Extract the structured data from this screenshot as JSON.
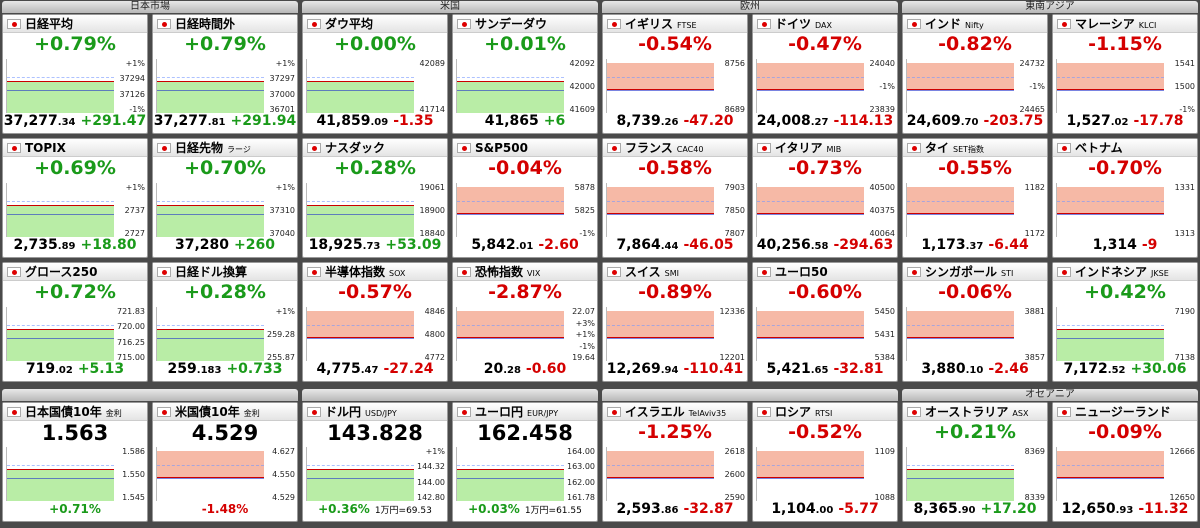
{
  "columns": [
    {
      "title": "日本市場",
      "tiles": [
        {
          "name": "日経平均",
          "change_pct": "+0.79%",
          "price": "37,277",
          "price_dec": ".34",
          "change": "+291.47",
          "labels": [
            "+1%",
            "37294",
            "37126",
            "-1%"
          ]
        },
        {
          "name": "日経時間外",
          "change_pct": "+0.79%",
          "price": "37,277",
          "price_dec": ".81",
          "change": "+291.94",
          "labels": [
            "+1%",
            "37297",
            "37000",
            "36701"
          ]
        },
        {
          "name": "TOPIX",
          "change_pct": "+0.69%",
          "price": "2,735",
          "price_dec": ".89",
          "change": "+18.80",
          "labels": [
            "+1%",
            "2737",
            "2727"
          ]
        },
        {
          "name": "日経先物",
          "code": "ラージ",
          "change_pct": "+0.70%",
          "price": "37,280",
          "change": "+260",
          "labels": [
            "+1%",
            "37310",
            "37040"
          ]
        },
        {
          "name": "グロース250",
          "change_pct": "+0.72%",
          "price": "719",
          "price_dec": ".02",
          "change": "+5.13",
          "labels": [
            "721.83",
            "720.00",
            "716.25",
            "715.00"
          ]
        },
        {
          "name": "日経ドル換算",
          "change_pct": "+0.28%",
          "price": "259",
          "price_dec": ".183",
          "change": "+0.733",
          "labels": [
            "+1%",
            "259.28",
            "255.87"
          ]
        },
        {
          "name": "日本国債10年",
          "code": "金利",
          "value": "1.563",
          "change": "+0.71%",
          "labels": [
            "1.586",
            "1.550",
            "1.545"
          ]
        },
        {
          "name": "米国債10年",
          "code": "金利",
          "value": "4.529",
          "change": "-1.48%",
          "labels": [
            "4.627",
            "4.550",
            "4.529"
          ]
        }
      ]
    },
    {
      "title": "米国",
      "tiles": [
        {
          "name": "ダウ平均",
          "change_pct": "+0.00%",
          "price": "41,859",
          "price_dec": ".09",
          "change": "-1.35",
          "labels": [
            "42089",
            "41714"
          ]
        },
        {
          "name": "サンデーダウ",
          "change_pct": "+0.01%",
          "price": "41,865",
          "change": "+6",
          "labels": [
            "42092",
            "42000",
            "41609"
          ]
        },
        {
          "name": "ナスダック",
          "change_pct": "+0.28%",
          "price": "18,925",
          "price_dec": ".73",
          "change": "+53.09",
          "labels": [
            "19061",
            "18900",
            "18840"
          ]
        },
        {
          "name": "S&P500",
          "change_pct": "-0.04%",
          "price": "5,842",
          "price_dec": ".01",
          "change": "-2.60",
          "labels": [
            "5878",
            "5825",
            "-1%"
          ]
        },
        {
          "name": "半導体指数",
          "code": "SOX",
          "change_pct": "-0.57%",
          "price": "4,775",
          "price_dec": ".47",
          "change": "-27.24",
          "labels": [
            "4846",
            "4800",
            "4772"
          ]
        },
        {
          "name": "恐怖指数",
          "code": "VIX",
          "change_pct": "-2.87%",
          "price": "20",
          "price_dec": ".28",
          "change": "-0.60",
          "labels": [
            "22.07",
            "+3%",
            "+1%",
            "-1%",
            "19.64"
          ]
        },
        {
          "name": "ドル円",
          "code": "USD/JPY",
          "value": "143.828",
          "change": "+0.36%",
          "note": "1万円=69.53",
          "labels": [
            "+1%",
            "144.32",
            "144.00",
            "142.80"
          ]
        },
        {
          "name": "ユーロ円",
          "code": "EUR/JPY",
          "value": "162.458",
          "change": "+0.03%",
          "note": "1万円=61.55",
          "labels": [
            "164.00",
            "163.00",
            "162.00",
            "161.78"
          ]
        }
      ]
    },
    {
      "title": "欧州",
      "tiles": [
        {
          "name": "イギリス",
          "code": "FTSE",
          "change_pct": "-0.54%",
          "price": "8,739",
          "price_dec": ".26",
          "change": "-47.20",
          "labels": [
            "8756",
            "8689"
          ]
        },
        {
          "name": "ドイツ",
          "code": "DAX",
          "change_pct": "-0.47%",
          "price": "24,008",
          "price_dec": ".27",
          "change": "-114.13",
          "labels": [
            "24040",
            "-1%",
            "23839"
          ]
        },
        {
          "name": "フランス",
          "code": "CAC40",
          "change_pct": "-0.58%",
          "price": "7,864",
          "price_dec": ".44",
          "change": "-46.05",
          "labels": [
            "7903",
            "7850",
            "7807"
          ]
        },
        {
          "name": "イタリア",
          "code": "MIB",
          "change_pct": "-0.73%",
          "price": "40,256",
          "price_dec": ".58",
          "change": "-294.63",
          "labels": [
            "40500",
            "40375",
            "40064"
          ]
        },
        {
          "name": "スイス",
          "code": "SMI",
          "change_pct": "-0.89%",
          "price": "12,269",
          "price_dec": ".94",
          "change": "-110.41",
          "labels": [
            "12336",
            "12201"
          ]
        },
        {
          "name": "ユーロ50",
          "change_pct": "-0.60%",
          "price": "5,421",
          "price_dec": ".65",
          "change": "-32.81",
          "labels": [
            "5450",
            "5431",
            "5384"
          ]
        },
        {
          "name": "イスラエル",
          "code": "TelAviv35",
          "change_pct": "-1.25%",
          "price": "2,593",
          "price_dec": ".86",
          "change": "-32.87",
          "labels": [
            "2618",
            "2600",
            "2590"
          ]
        },
        {
          "name": "ロシア",
          "code": "RTSI",
          "change_pct": "-0.52%",
          "price": "1,104",
          "price_dec": ".00",
          "change": "-5.77",
          "labels": [
            "1109",
            "1088"
          ]
        }
      ]
    },
    {
      "title": "東南アジア",
      "bottom_title": "オセアニア",
      "tiles": [
        {
          "name": "インド",
          "code": "Nifty",
          "change_pct": "-0.82%",
          "price": "24,609",
          "price_dec": ".70",
          "change": "-203.75",
          "labels": [
            "24732",
            "-1%",
            "24465"
          ]
        },
        {
          "name": "マレーシア",
          "code": "KLCI",
          "change_pct": "-1.15%",
          "price": "1,527",
          "price_dec": ".02",
          "change": "-17.78",
          "labels": [
            "1541",
            "1500",
            "-1%"
          ]
        },
        {
          "name": "タイ",
          "code": "SET指数",
          "change_pct": "-0.55%",
          "price": "1,173",
          "price_dec": ".37",
          "change": "-6.44",
          "labels": [
            "1182",
            "1172"
          ]
        },
        {
          "name": "ベトナム",
          "change_pct": "-0.70%",
          "price": "1,314",
          "change": "-9",
          "labels": [
            "1331",
            "1313"
          ]
        },
        {
          "name": "シンガポール",
          "code": "STI",
          "change_pct": "-0.06%",
          "price": "3,880",
          "price_dec": ".10",
          "change": "-2.46",
          "labels": [
            "3881",
            "3857"
          ]
        },
        {
          "name": "インドネシア",
          "code": "JKSE",
          "change_pct": "+0.42%",
          "price": "7,172",
          "price_dec": ".52",
          "change": "+30.06",
          "labels": [
            "7190",
            "7138"
          ]
        },
        {
          "name": "オーストラリア",
          "code": "ASX",
          "change_pct": "+0.21%",
          "price": "8,365",
          "price_dec": ".90",
          "change": "+17.20",
          "labels": [
            "8369",
            "8339"
          ]
        },
        {
          "name": "ニュージーランド",
          "change_pct": "-0.09%",
          "price": "12,650",
          "price_dec": ".93",
          "change": "-11.32",
          "labels": [
            "12666",
            "12650"
          ]
        }
      ]
    }
  ]
}
